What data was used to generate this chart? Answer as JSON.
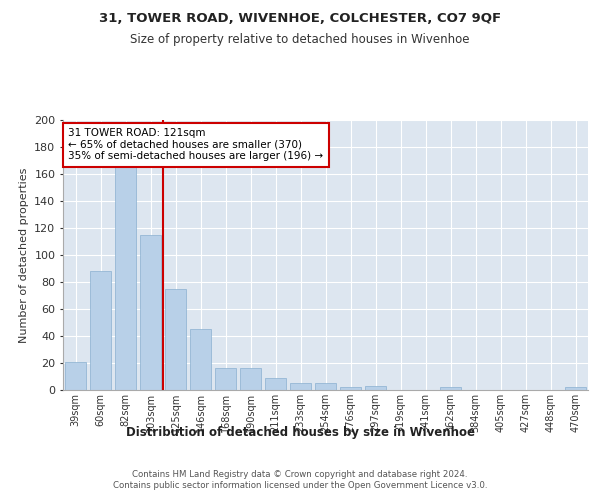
{
  "title1": "31, TOWER ROAD, WIVENHOE, COLCHESTER, CO7 9QF",
  "title2": "Size of property relative to detached houses in Wivenhoe",
  "xlabel": "Distribution of detached houses by size in Wivenhoe",
  "ylabel": "Number of detached properties",
  "categories": [
    "39sqm",
    "60sqm",
    "82sqm",
    "103sqm",
    "125sqm",
    "146sqm",
    "168sqm",
    "190sqm",
    "211sqm",
    "233sqm",
    "254sqm",
    "276sqm",
    "297sqm",
    "319sqm",
    "341sqm",
    "362sqm",
    "384sqm",
    "405sqm",
    "427sqm",
    "448sqm",
    "470sqm"
  ],
  "values": [
    21,
    88,
    167,
    115,
    75,
    45,
    16,
    16,
    9,
    5,
    5,
    2,
    3,
    0,
    0,
    2,
    0,
    0,
    0,
    0,
    2
  ],
  "bar_color": "#b8d0e8",
  "bar_edge_color": "#8ab0d0",
  "bg_color": "#dde6f0",
  "grid_color": "#ffffff",
  "vline_x": 3.5,
  "annotation_text": "31 TOWER ROAD: 121sqm\n← 65% of detached houses are smaller (370)\n35% of semi-detached houses are larger (196) →",
  "annotation_box_color": "#ffffff",
  "annotation_box_edge": "#cc0000",
  "vline_color": "#cc0000",
  "footer_text": "Contains HM Land Registry data © Crown copyright and database right 2024.\nContains public sector information licensed under the Open Government Licence v3.0.",
  "ylim": [
    0,
    200
  ],
  "yticks": [
    0,
    20,
    40,
    60,
    80,
    100,
    120,
    140,
    160,
    180,
    200
  ]
}
